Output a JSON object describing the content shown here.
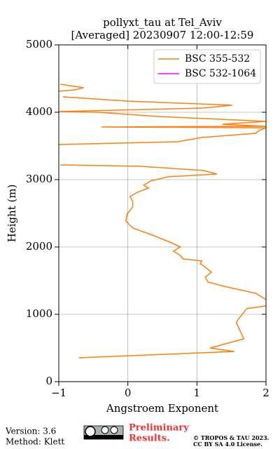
{
  "chart_data": {
    "type": "line",
    "title": "pollyxt_tau at Tel_Aviv",
    "subtitle": "[Averaged] 20230907 12:00-12:59",
    "x_label": "Angstroem Exponent",
    "y_label": "Height (m)",
    "xlim": [
      -1,
      2
    ],
    "ylim": [
      0,
      5000
    ],
    "xticks": [
      {
        "value": -1,
        "label": "−1"
      },
      0,
      1,
      2
    ],
    "yticks": [
      0,
      1000,
      2000,
      3000,
      4000,
      5000
    ],
    "grid": true,
    "legend": "upper right",
    "series": [
      {
        "name": "BSC 355-532",
        "color": "#ff7f0e",
        "x": [
          -0.71,
          1.54,
          1.19,
          1.68,
          1.57,
          1.6,
          1.72,
          2.0,
          null,
          2.0,
          1.85,
          1.39,
          1.16,
          1.12,
          1.21,
          1.11,
          1.05,
          1.07,
          0.8,
          0.76,
          0.66,
          0.76,
          0.63,
          0.38,
          0.07,
          -0.03,
          -0.01,
          0.07,
          0.07,
          0.03,
          0.14,
          0.3,
          0.23,
          0.33,
          0.58,
          1.29,
          1.09,
          0.18,
          -0.98,
          null,
          -1.0,
          0.73,
          1.07,
          1.85,
          1.9,
          2.0,
          -0.38,
          2.0,
          1.37,
          2.0,
          0.43,
          -0.43,
          -1.0,
          1.09,
          1.51,
          -0.03,
          -0.94,
          null,
          -1.0,
          -0.76,
          -0.64,
          -0.98
        ],
        "y": [
          354,
          448,
          500,
          635,
          875,
          927,
          1083,
          1125,
          null,
          1219,
          1313,
          1417,
          1479,
          1552,
          1625,
          1708,
          1750,
          1792,
          1823,
          1875,
          1938,
          2000,
          2063,
          2167,
          2281,
          2385,
          2490,
          2594,
          2677,
          2750,
          2813,
          2875,
          2917,
          2979,
          3042,
          3083,
          3135,
          3198,
          3219,
          null,
          3521,
          3563,
          3625,
          3688,
          3729,
          3770,
          3781,
          3792,
          3822,
          3865,
          3938,
          4000,
          4010,
          4063,
          4104,
          4167,
          4229,
          null,
          4313,
          4333,
          4365,
          4417
        ]
      },
      {
        "name": "BSC 532-1064",
        "color": "#ff00ff",
        "x": [],
        "y": []
      }
    ],
    "footer": {
      "version": "Version: 3.6",
      "method": "Method: Klett",
      "status": [
        "Preliminary",
        "Results."
      ],
      "copyright": [
        "© TROPOS & TAU 2023.",
        "CC BY SA 4.0 License."
      ]
    }
  }
}
